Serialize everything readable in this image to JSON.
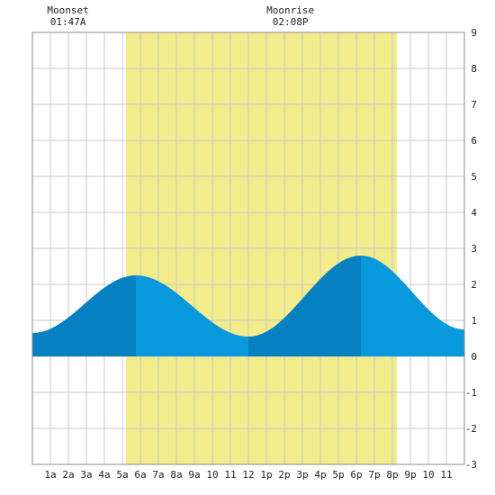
{
  "moonset": {
    "label": "Moonset",
    "time": "01:47A",
    "hour": 1.78
  },
  "moonrise": {
    "label": "Moonrise",
    "time": "02:08P",
    "hour": 14.13
  },
  "chart_data": {
    "type": "area",
    "x_unit": "hour of day",
    "xlim": [
      0,
      24
    ],
    "ylim": [
      -3,
      9
    ],
    "grid": true,
    "daylight": {
      "start_hour": 5.2,
      "end_hour": 20.25,
      "color": "#f2ec8c"
    },
    "x_tick_labels": [
      "1a",
      "2a",
      "3a",
      "4a",
      "5a",
      "6a",
      "7a",
      "8a",
      "9a",
      "10",
      "11",
      "12",
      "1p",
      "2p",
      "3p",
      "4p",
      "5p",
      "6p",
      "7p",
      "8p",
      "9p",
      "10",
      "11"
    ],
    "y_tick_labels": [
      "-3",
      "-2",
      "-1",
      "0",
      "1",
      "2",
      "3",
      "4",
      "5",
      "6",
      "7",
      "8",
      "9"
    ],
    "colors": {
      "rising": "#0580c0",
      "falling": "#0898dc",
      "grid": "#c8c8c8",
      "border": "#888888"
    },
    "extremes": [
      {
        "hour": 0.0,
        "value": 0.65,
        "kind": "low"
      },
      {
        "hour": 5.75,
        "value": 2.25,
        "kind": "high"
      },
      {
        "hour": 12.0,
        "value": 0.55,
        "kind": "low"
      },
      {
        "hour": 18.25,
        "value": 2.8,
        "kind": "high"
      },
      {
        "hour": 24.0,
        "value": 0.75,
        "kind": "low"
      }
    ]
  }
}
